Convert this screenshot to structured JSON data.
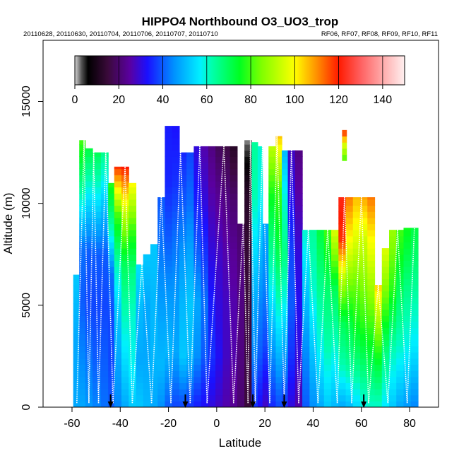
{
  "chart_data": {
    "type": "heatmap",
    "title": "HIPPO4 Northbound O3_UO3_trop",
    "subtitle_left": "20110628, 20110630, 20110704, 20110706, 20110707, 20110710",
    "subtitle_right": "RF06, RF07, RF08, RF09, RF10, RF11",
    "xlabel": "Latitude",
    "ylabel": "Altitude (m)",
    "xlim": [
      -72,
      92
    ],
    "ylim": [
      0,
      18000
    ],
    "x_ticks": [
      -60,
      -40,
      -20,
      0,
      20,
      40,
      60,
      80
    ],
    "x_tick_labels": [
      "-60",
      "-40",
      "-20",
      "0",
      "20",
      "40",
      "60",
      "80"
    ],
    "y_ticks": [
      0,
      5000,
      10000,
      15000
    ],
    "y_tick_labels": [
      "0",
      "5000",
      "10000",
      "15000"
    ],
    "colorbar": {
      "range": [
        0,
        150
      ],
      "ticks": [
        0,
        20,
        40,
        60,
        80,
        100,
        120,
        140
      ],
      "tick_labels": [
        "0",
        "20",
        "40",
        "60",
        "80",
        "100",
        "120",
        "140"
      ],
      "stops": [
        {
          "v": 0,
          "c": "#d8d8d8"
        },
        {
          "v": 3,
          "c": "#555555"
        },
        {
          "v": 6,
          "c": "#000000"
        },
        {
          "v": 15,
          "c": "#3a0a3a"
        },
        {
          "v": 25,
          "c": "#5a00a0"
        },
        {
          "v": 33,
          "c": "#1a10ff"
        },
        {
          "v": 45,
          "c": "#0090ff"
        },
        {
          "v": 57,
          "c": "#00f0ff"
        },
        {
          "v": 62,
          "c": "#00ffb0"
        },
        {
          "v": 75,
          "c": "#00ff20"
        },
        {
          "v": 85,
          "c": "#80ff00"
        },
        {
          "v": 100,
          "c": "#ffff00"
        },
        {
          "v": 110,
          "c": "#ff9000"
        },
        {
          "v": 120,
          "c": "#ff1a00"
        },
        {
          "v": 130,
          "c": "#ff6060"
        },
        {
          "v": 140,
          "c": "#ffaaaa"
        },
        {
          "v": 150,
          "c": "#fff0f0"
        }
      ]
    },
    "profiles": [
      {
        "lat": -58,
        "top": 6500,
        "v": [
          48,
          48,
          52
        ]
      },
      {
        "lat": -56,
        "top": 13100,
        "v": [
          48,
          44,
          40,
          42,
          62,
          80
        ]
      },
      {
        "lat": -53,
        "top": 12700,
        "v": [
          46,
          42,
          38,
          40,
          55,
          72
        ]
      },
      {
        "lat": -50,
        "top": 12500,
        "v": [
          44,
          40,
          38,
          40,
          55,
          70
        ]
      },
      {
        "lat": -46,
        "top": 12500,
        "v": [
          42,
          40,
          38,
          40,
          52,
          65
        ]
      },
      {
        "lat": -44,
        "top": 11000,
        "v": [
          40,
          38,
          38,
          42,
          62,
          78
        ]
      },
      {
        "lat": -41,
        "top": 11800,
        "v": [
          44,
          48,
          52,
          62,
          80,
          118
        ]
      },
      {
        "lat": -38,
        "top": 11800,
        "v": [
          48,
          55,
          62,
          70,
          92,
          120
        ]
      },
      {
        "lat": -35,
        "top": 11000,
        "v": [
          52,
          58,
          60,
          66,
          80,
          100
        ]
      },
      {
        "lat": -32,
        "top": 7000,
        "v": [
          52,
          48,
          50,
          55
        ]
      },
      {
        "lat": -29,
        "top": 7500,
        "v": [
          50,
          48,
          48,
          52
        ]
      },
      {
        "lat": -26,
        "top": 8000,
        "v": [
          48,
          50,
          50,
          52
        ]
      },
      {
        "lat": -23,
        "top": 10300,
        "v": [
          45,
          50,
          48,
          45,
          42,
          40
        ]
      },
      {
        "lat": -20,
        "top": 13800,
        "v": [
          40,
          50,
          46,
          40,
          35,
          34
        ]
      },
      {
        "lat": -17,
        "top": 13800,
        "v": [
          38,
          48,
          46,
          42,
          36,
          33
        ]
      },
      {
        "lat": -14,
        "top": 12500,
        "v": [
          38,
          52,
          50,
          46,
          40,
          35
        ]
      },
      {
        "lat": -11,
        "top": 12500,
        "v": [
          36,
          50,
          52,
          48,
          42,
          38
        ]
      },
      {
        "lat": -8,
        "top": 12800,
        "v": [
          34,
          45,
          48,
          40,
          34,
          30
        ]
      },
      {
        "lat": -5,
        "top": 12800,
        "v": [
          32,
          40,
          42,
          36,
          30,
          26
        ]
      },
      {
        "lat": -2,
        "top": 12800,
        "v": [
          30,
          36,
          34,
          30,
          26,
          22
        ]
      },
      {
        "lat": 1,
        "top": 12800,
        "v": [
          28,
          32,
          30,
          28,
          24,
          18
        ]
      },
      {
        "lat": 4,
        "top": 12800,
        "v": [
          26,
          28,
          28,
          26,
          22,
          16
        ]
      },
      {
        "lat": 7,
        "top": 12800,
        "v": [
          24,
          26,
          26,
          24,
          20,
          12
        ]
      },
      {
        "lat": 10,
        "top": 9000,
        "v": [
          20,
          22,
          22,
          20
        ]
      },
      {
        "lat": 13,
        "top": 13100,
        "v": [
          15,
          16,
          15,
          14,
          12,
          2
        ]
      },
      {
        "lat": 16,
        "top": 13000,
        "v": [
          36,
          44,
          48,
          55,
          62,
          64
        ]
      },
      {
        "lat": 18,
        "top": 12800,
        "v": [
          32,
          40,
          44,
          50,
          58,
          60
        ]
      },
      {
        "lat": 20,
        "top": 9000,
        "v": [
          28,
          38,
          44,
          48
        ]
      },
      {
        "lat": 23,
        "top": 12800,
        "v": [
          35,
          45,
          55,
          65,
          75,
          92
        ]
      },
      {
        "lat": 26,
        "top": 13300,
        "v": [
          38,
          50,
          62,
          72,
          80,
          105
        ]
      },
      {
        "lat": 28,
        "top": 12600,
        "v": [
          36,
          46,
          58,
          66,
          60,
          50
        ]
      },
      {
        "lat": 31,
        "top": 12600,
        "v": [
          30,
          36,
          40,
          38,
          32,
          28
        ]
      },
      {
        "lat": 34,
        "top": 12600,
        "v": [
          26,
          30,
          32,
          30,
          26,
          22
        ]
      },
      {
        "lat": 37,
        "top": 8700,
        "v": [
          40,
          45,
          52,
          60
        ]
      },
      {
        "lat": 40,
        "top": 8700,
        "v": [
          45,
          52,
          60,
          64
        ]
      },
      {
        "lat": 43,
        "top": 8700,
        "v": [
          48,
          58,
          65,
          72
        ]
      },
      {
        "lat": 46,
        "top": 8700,
        "v": [
          52,
          62,
          68,
          80
        ]
      },
      {
        "lat": 49,
        "top": 8700,
        "v": [
          50,
          60,
          70,
          96
        ]
      },
      {
        "lat": 52,
        "top": 10300,
        "v": [
          48,
          62,
          70,
          90,
          118,
          122
        ]
      },
      {
        "lat": 55,
        "top": 10300,
        "v": [
          50,
          64,
          72,
          85,
          100,
          112
        ]
      },
      {
        "lat": 58,
        "top": 10300,
        "v": [
          54,
          66,
          76,
          84,
          96,
          106
        ]
      },
      {
        "lat": 61,
        "top": 10300,
        "v": [
          58,
          68,
          78,
          86,
          94,
          108
        ]
      },
      {
        "lat": 64,
        "top": 10300,
        "v": [
          60,
          70,
          80,
          90,
          100,
          112
        ]
      },
      {
        "lat": 67,
        "top": 6000,
        "v": [
          60,
          72,
          88,
          104
        ]
      },
      {
        "lat": 70,
        "top": 7800,
        "v": [
          56,
          66,
          82,
          96
        ]
      },
      {
        "lat": 73,
        "top": 8700,
        "v": [
          52,
          62,
          78,
          88
        ]
      },
      {
        "lat": 76,
        "top": 8700,
        "v": [
          48,
          60,
          70,
          80
        ]
      },
      {
        "lat": 79,
        "top": 8800,
        "v": [
          46,
          58,
          66,
          76
        ]
      },
      {
        "lat": 82,
        "top": 8800,
        "v": [
          44,
          56,
          64,
          72
        ]
      }
    ],
    "islands": [
      {
        "lat": 53,
        "bottom": 12100,
        "top": 13600,
        "v": [
          80,
          95,
          120
        ]
      }
    ],
    "flight_track_lats": [
      -58,
      -55,
      -53,
      -51,
      -49,
      -46,
      -43,
      -38,
      -35,
      -31,
      -27,
      -23,
      -19,
      -15,
      -11,
      -7,
      -4,
      3,
      7,
      11,
      13,
      14,
      16,
      19,
      22,
      25,
      28,
      31,
      34,
      38,
      42,
      46,
      50,
      53,
      56,
      60,
      63,
      67,
      71,
      75,
      79,
      82
    ],
    "event_markers_lat": [
      -44,
      -13,
      15,
      28,
      61
    ]
  }
}
